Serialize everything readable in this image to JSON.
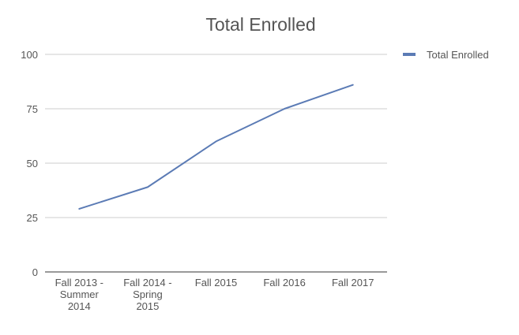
{
  "chart_data": {
    "type": "line",
    "title": "Total Enrolled",
    "xlabel": "",
    "ylabel": "",
    "categories": [
      [
        "Fall 2013 -",
        "Summer",
        "2014"
      ],
      [
        "Fall 2014 -",
        "Spring",
        "2015"
      ],
      [
        "Fall 2015"
      ],
      [
        "Fall 2016"
      ],
      [
        "Fall 2017"
      ]
    ],
    "series": [
      {
        "name": "Total Enrolled",
        "color": "#5b7bb5",
        "values": [
          29,
          39,
          60,
          75,
          86
        ]
      }
    ],
    "ylim": [
      0,
      100
    ],
    "yticks": [
      0,
      25,
      50,
      75,
      100
    ],
    "grid": true,
    "legend_position": "right"
  }
}
